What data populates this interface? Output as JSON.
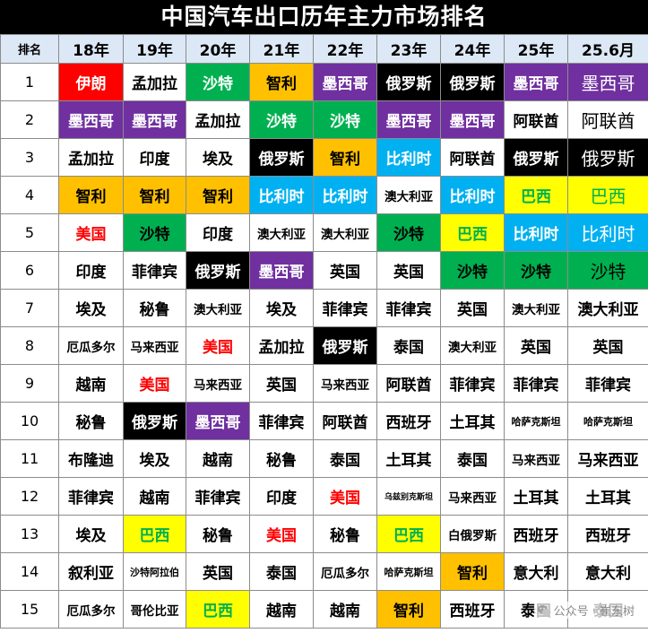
{
  "title": "中国汽车出口历年主力市场排名",
  "headers": [
    "排名",
    "18年",
    "19年",
    "20年",
    "21年",
    "22年",
    "23年",
    "24年",
    "25年",
    "25.6月"
  ],
  "colors": {
    "red": "#ff0000",
    "purple": "#7030a0",
    "green": "#00b050",
    "orange": "#ffc000",
    "black": "#000000",
    "blue": "#00b0f0",
    "yellow": "#ffff00",
    "header_bg": "#dce8f5",
    "text_red": "#ff0000",
    "text_green": "#00b050"
  },
  "rows": [
    {
      "rank": "1",
      "cells": [
        {
          "text": "伊朗",
          "bg": "red",
          "fg": "white"
        },
        {
          "text": "孟加拉"
        },
        {
          "text": "沙特",
          "bg": "green",
          "fg": "white"
        },
        {
          "text": "智利",
          "bg": "orange"
        },
        {
          "text": "墨西哥",
          "bg": "purple",
          "fg": "white"
        },
        {
          "text": "俄罗斯",
          "bg": "black",
          "fg": "white"
        },
        {
          "text": "俄罗斯",
          "bg": "black",
          "fg": "white"
        },
        {
          "text": "墨西哥",
          "bg": "purple",
          "fg": "white"
        },
        {
          "text": "墨西哥",
          "bg": "purple",
          "fg": "white",
          "style": "plain"
        }
      ]
    },
    {
      "rank": "2",
      "cells": [
        {
          "text": "墨西哥",
          "bg": "purple",
          "fg": "white"
        },
        {
          "text": "墨西哥",
          "bg": "purple",
          "fg": "white"
        },
        {
          "text": "孟加拉"
        },
        {
          "text": "沙特",
          "bg": "green",
          "fg": "white"
        },
        {
          "text": "沙特",
          "bg": "green",
          "fg": "white"
        },
        {
          "text": "墨西哥",
          "bg": "purple",
          "fg": "white"
        },
        {
          "text": "墨西哥",
          "bg": "purple",
          "fg": "white"
        },
        {
          "text": "阿联酋"
        },
        {
          "text": "阿联酋",
          "style": "plain"
        }
      ]
    },
    {
      "rank": "3",
      "cells": [
        {
          "text": "孟加拉"
        },
        {
          "text": "印度"
        },
        {
          "text": "埃及"
        },
        {
          "text": "俄罗斯",
          "bg": "black",
          "fg": "white"
        },
        {
          "text": "智利",
          "bg": "orange"
        },
        {
          "text": "比利时",
          "bg": "blue",
          "fg": "white"
        },
        {
          "text": "阿联酋"
        },
        {
          "text": "俄罗斯",
          "bg": "black",
          "fg": "white"
        },
        {
          "text": "俄罗斯",
          "bg": "black",
          "fg": "white",
          "style": "plain"
        }
      ]
    },
    {
      "rank": "4",
      "cells": [
        {
          "text": "智利",
          "bg": "orange"
        },
        {
          "text": "智利",
          "bg": "orange"
        },
        {
          "text": "智利",
          "bg": "orange"
        },
        {
          "text": "比利时",
          "bg": "blue",
          "fg": "white"
        },
        {
          "text": "比利时",
          "bg": "blue",
          "fg": "white"
        },
        {
          "text": "澳大利亚",
          "size": "s"
        },
        {
          "text": "比利时",
          "bg": "blue",
          "fg": "white"
        },
        {
          "text": "巴西",
          "bg": "yellow",
          "fg": "green"
        },
        {
          "text": "巴西",
          "bg": "yellow",
          "fg": "green",
          "style": "plain"
        }
      ]
    },
    {
      "rank": "5",
      "cells": [
        {
          "text": "美国",
          "fg": "red"
        },
        {
          "text": "沙特",
          "bg": "green"
        },
        {
          "text": "印度"
        },
        {
          "text": "澳大利亚",
          "size": "s"
        },
        {
          "text": "澳大利亚",
          "size": "s"
        },
        {
          "text": "沙特",
          "bg": "green"
        },
        {
          "text": "巴西",
          "bg": "yellow",
          "fg": "green"
        },
        {
          "text": "比利时",
          "bg": "blue",
          "fg": "white"
        },
        {
          "text": "比利时",
          "bg": "blue",
          "fg": "white",
          "style": "plain"
        }
      ]
    },
    {
      "rank": "6",
      "cells": [
        {
          "text": "印度"
        },
        {
          "text": "菲律宾"
        },
        {
          "text": "俄罗斯",
          "bg": "black",
          "fg": "white"
        },
        {
          "text": "墨西哥",
          "bg": "purple",
          "fg": "white"
        },
        {
          "text": "英国"
        },
        {
          "text": "英国"
        },
        {
          "text": "沙特",
          "bg": "green"
        },
        {
          "text": "沙特",
          "bg": "green"
        },
        {
          "text": "沙特",
          "bg": "green",
          "style": "plain"
        }
      ]
    },
    {
      "rank": "7",
      "cells": [
        {
          "text": "埃及"
        },
        {
          "text": "秘鲁"
        },
        {
          "text": "澳大利亚",
          "size": "s"
        },
        {
          "text": "埃及"
        },
        {
          "text": "菲律宾"
        },
        {
          "text": "菲律宾"
        },
        {
          "text": "英国"
        },
        {
          "text": "澳大利亚",
          "size": "s"
        },
        {
          "text": "澳大利亚"
        }
      ]
    },
    {
      "rank": "8",
      "cells": [
        {
          "text": "厄瓜多尔",
          "size": "s"
        },
        {
          "text": "马来西亚",
          "size": "s"
        },
        {
          "text": "美国",
          "fg": "red"
        },
        {
          "text": "孟加拉"
        },
        {
          "text": "俄罗斯",
          "bg": "black",
          "fg": "white"
        },
        {
          "text": "泰国"
        },
        {
          "text": "澳大利亚",
          "size": "s"
        },
        {
          "text": "英国"
        },
        {
          "text": "英国"
        }
      ]
    },
    {
      "rank": "9",
      "cells": [
        {
          "text": "越南"
        },
        {
          "text": "美国",
          "fg": "red"
        },
        {
          "text": "马来西亚",
          "size": "s"
        },
        {
          "text": "英国"
        },
        {
          "text": "马来西亚",
          "size": "s"
        },
        {
          "text": "阿联酋"
        },
        {
          "text": "菲律宾"
        },
        {
          "text": "菲律宾"
        },
        {
          "text": "菲律宾"
        }
      ]
    },
    {
      "rank": "10",
      "cells": [
        {
          "text": "秘鲁"
        },
        {
          "text": "俄罗斯",
          "bg": "black",
          "fg": "white"
        },
        {
          "text": "墨西哥",
          "bg": "purple",
          "fg": "white"
        },
        {
          "text": "菲律宾"
        },
        {
          "text": "阿联酋"
        },
        {
          "text": "西班牙"
        },
        {
          "text": "土耳其"
        },
        {
          "text": "哈萨克斯坦",
          "size": "xs"
        },
        {
          "text": "哈萨克斯坦",
          "size": "xs"
        }
      ]
    },
    {
      "rank": "11",
      "cells": [
        {
          "text": "布隆迪"
        },
        {
          "text": "埃及"
        },
        {
          "text": "越南"
        },
        {
          "text": "秘鲁"
        },
        {
          "text": "泰国"
        },
        {
          "text": "土耳其"
        },
        {
          "text": "泰国"
        },
        {
          "text": "马来西亚",
          "size": "s"
        },
        {
          "text": "马来西亚"
        }
      ]
    },
    {
      "rank": "12",
      "cells": [
        {
          "text": "菲律宾"
        },
        {
          "text": "越南"
        },
        {
          "text": "菲律宾"
        },
        {
          "text": "印度"
        },
        {
          "text": "美国",
          "fg": "red"
        },
        {
          "text": "乌兹别克斯坦",
          "size": "xxs"
        },
        {
          "text": "马来西亚",
          "size": "s"
        },
        {
          "text": "土耳其"
        },
        {
          "text": "土耳其"
        }
      ]
    },
    {
      "rank": "13",
      "cells": [
        {
          "text": "埃及"
        },
        {
          "text": "巴西",
          "bg": "yellow",
          "fg": "green"
        },
        {
          "text": "秘鲁"
        },
        {
          "text": "美国",
          "fg": "red"
        },
        {
          "text": "秘鲁"
        },
        {
          "text": "巴西",
          "bg": "yellow",
          "fg": "green"
        },
        {
          "text": "白俄罗斯",
          "size": "s"
        },
        {
          "text": "西班牙"
        },
        {
          "text": "西班牙"
        }
      ]
    },
    {
      "rank": "14",
      "cells": [
        {
          "text": "叙利亚"
        },
        {
          "text": "沙特阿拉伯",
          "size": "xs"
        },
        {
          "text": "英国"
        },
        {
          "text": "泰国"
        },
        {
          "text": "厄瓜多尔",
          "size": "s"
        },
        {
          "text": "哈萨克斯坦",
          "size": "xs"
        },
        {
          "text": "智利",
          "bg": "orange"
        },
        {
          "text": "意大利"
        },
        {
          "text": "意大利"
        }
      ]
    },
    {
      "rank": "15",
      "cells": [
        {
          "text": "厄瓜多尔",
          "size": "s"
        },
        {
          "text": "哥伦比亚",
          "size": "s"
        },
        {
          "text": "巴西",
          "bg": "yellow",
          "fg": "green"
        },
        {
          "text": "越南"
        },
        {
          "text": "越南"
        },
        {
          "text": "智利",
          "bg": "orange"
        },
        {
          "text": "西班牙"
        },
        {
          "text": "泰国"
        },
        {
          "text": "泰国"
        }
      ]
    }
  ],
  "watermark": {
    "text": "公众号 · 崔东树",
    "icon": "wechat-icon"
  }
}
